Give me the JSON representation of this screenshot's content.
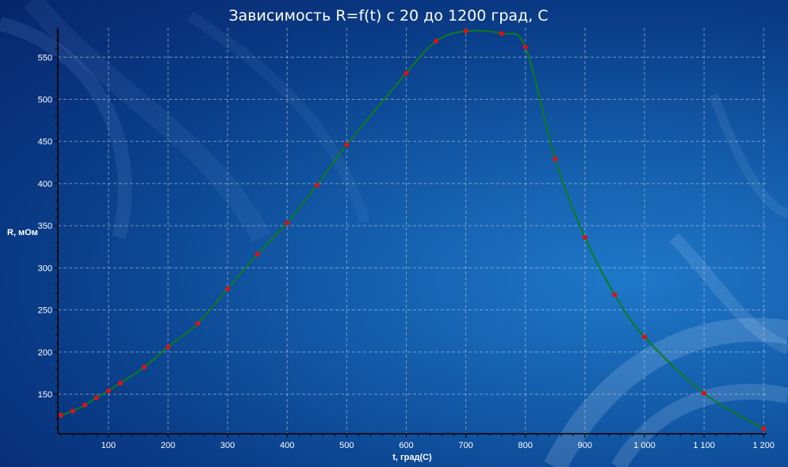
{
  "chart_data": {
    "type": "line",
    "title": "Зависимость R=f(t) с 20 до 1200 град, С",
    "xlabel": "t, град(С)",
    "ylabel": "R, мОм",
    "xlim": [
      15,
      1205
    ],
    "ylim": [
      103,
      585
    ],
    "x_ticks": [
      100,
      200,
      300,
      400,
      500,
      600,
      700,
      800,
      900,
      1000,
      1100,
      1200
    ],
    "x_tick_labels": [
      "100",
      "200",
      "300",
      "400",
      "500",
      "600",
      "700",
      "800",
      "900",
      "1 000",
      "1 100",
      "1 200"
    ],
    "y_ticks": [
      150,
      200,
      250,
      300,
      350,
      400,
      450,
      500,
      550
    ],
    "y_tick_labels": [
      "150",
      "200",
      "250",
      "300",
      "350",
      "400",
      "450",
      "500",
      "550"
    ],
    "grid": true,
    "line_color": "#0f7a1e",
    "marker_color": "#e01010",
    "series": [
      {
        "x": [
          20,
          40,
          60,
          80,
          100,
          120,
          160,
          200,
          250,
          300,
          350,
          400,
          450,
          500,
          600,
          650,
          700,
          760,
          800,
          850,
          900,
          950,
          1000,
          1100,
          1200
        ],
        "values": [
          125,
          130,
          137,
          146,
          154,
          163,
          182,
          206,
          234,
          275,
          316,
          353,
          398,
          446,
          531,
          569,
          581,
          578,
          562,
          429,
          336,
          268,
          218,
          151,
          109
        ]
      }
    ]
  }
}
